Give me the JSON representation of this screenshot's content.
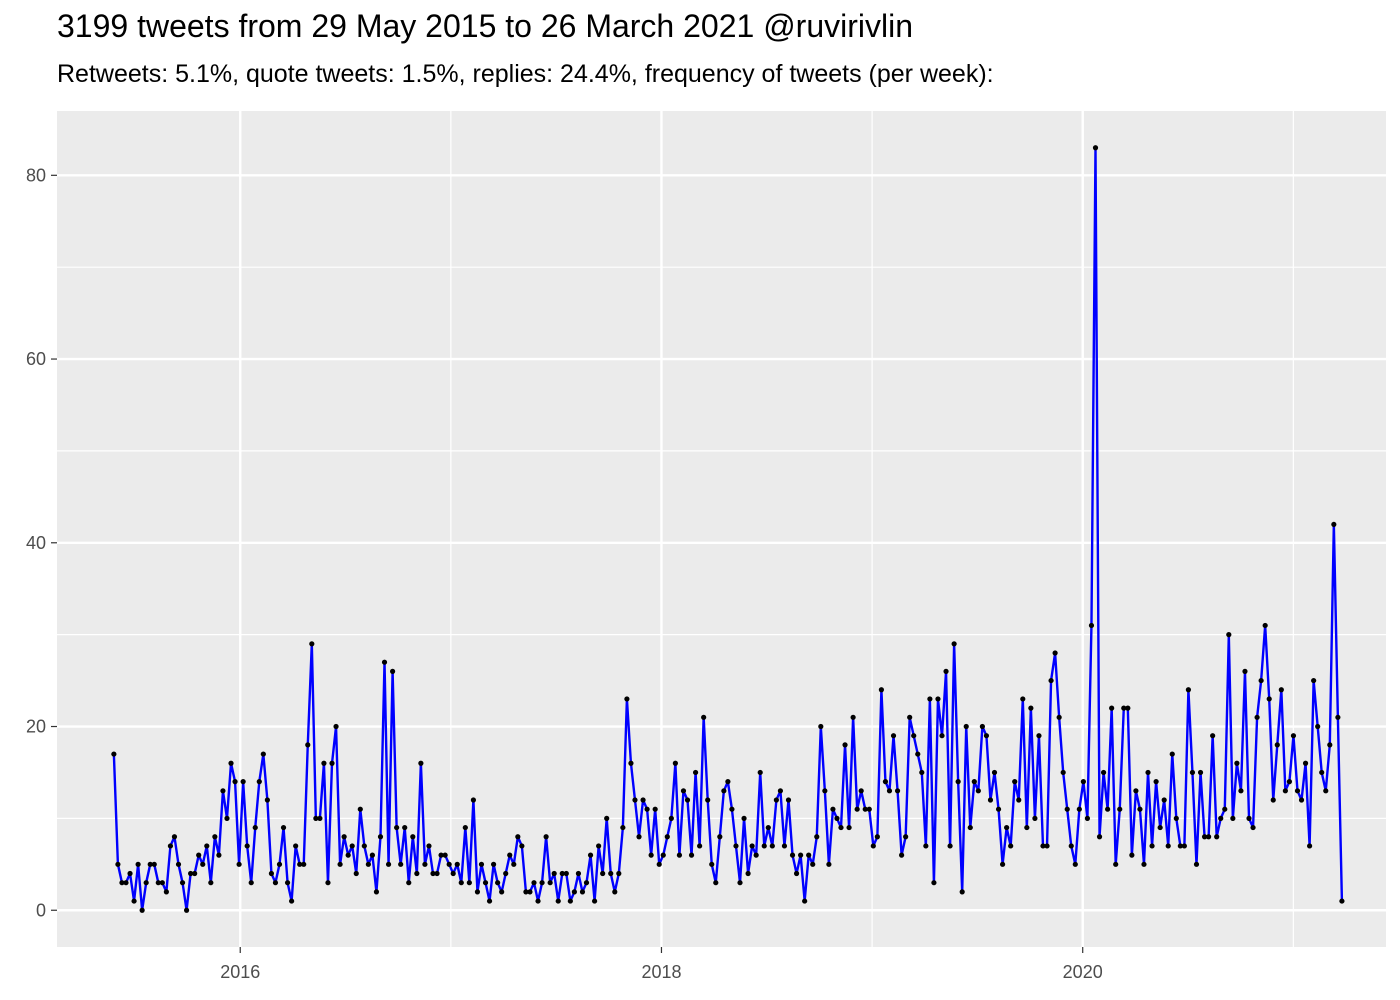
{
  "chart_data": {
    "type": "line",
    "title": "3199 tweets from 29 May 2015 to 26 March 2021 @ruvirivlin",
    "subtitle": "Retweets: 5.1%, quote tweets: 1.5%, replies: 24.4%, frequency of tweets (per week):",
    "xlabel": "",
    "ylabel": "",
    "x_range": [
      2015.13,
      2021.44
    ],
    "x_start": 2015.4,
    "x_step": 0.01918,
    "ylim": [
      -4,
      87
    ],
    "x_ticks": [
      {
        "value": 2016,
        "label": "2016"
      },
      {
        "value": 2018,
        "label": "2018"
      },
      {
        "value": 2020,
        "label": "2020"
      }
    ],
    "x_minor_ticks": [
      2017,
      2019,
      2021
    ],
    "y_ticks": [
      {
        "value": 0,
        "label": "0"
      },
      {
        "value": 20,
        "label": "20"
      },
      {
        "value": 40,
        "label": "40"
      },
      {
        "value": 60,
        "label": "60"
      },
      {
        "value": 80,
        "label": "80"
      }
    ],
    "y_minor_ticks": [
      10,
      30,
      50,
      70
    ],
    "grid": true,
    "line_color": "#0000ff",
    "point_color": "#000000",
    "panel_color": "#ebebeb",
    "grid_color": "#ffffff",
    "series": [
      {
        "values": [
          17,
          5,
          3,
          3,
          4,
          1,
          5,
          0,
          3,
          5,
          5,
          3,
          3,
          2,
          7,
          8,
          5,
          3,
          0,
          4,
          4,
          6,
          5,
          7,
          3,
          8,
          6,
          13,
          10,
          16,
          14,
          5,
          14,
          7,
          3,
          9,
          14,
          17,
          12,
          4,
          3,
          5,
          9,
          3,
          1,
          7,
          5,
          5,
          18,
          29,
          10,
          10,
          16,
          3,
          16,
          20,
          5,
          8,
          6,
          7,
          4,
          11,
          7,
          5,
          6,
          2,
          8,
          27,
          5,
          26,
          9,
          5,
          9,
          3,
          8,
          4,
          16,
          5,
          7,
          4,
          4,
          6,
          6,
          5,
          4,
          5,
          3,
          9,
          3,
          12,
          2,
          5,
          3,
          1,
          5,
          3,
          2,
          4,
          6,
          5,
          8,
          7,
          2,
          2,
          3,
          1,
          3,
          8,
          3,
          4,
          1,
          4,
          4,
          1,
          2,
          4,
          2,
          3,
          6,
          1,
          7,
          4,
          10,
          4,
          2,
          4,
          9,
          23,
          16,
          12,
          8,
          12,
          11,
          6,
          11,
          5,
          6,
          8,
          10,
          16,
          6,
          13,
          12,
          6,
          15,
          7,
          21,
          12,
          5,
          3,
          8,
          13,
          14,
          11,
          7,
          3,
          10,
          4,
          7,
          6,
          15,
          7,
          9,
          7,
          12,
          13,
          7,
          12,
          6,
          4,
          6,
          1,
          6,
          5,
          8,
          20,
          13,
          5,
          11,
          10,
          9,
          18,
          9,
          21,
          11,
          13,
          11,
          11,
          7,
          8,
          24,
          14,
          13,
          19,
          13,
          6,
          8,
          21,
          19,
          17,
          15,
          7,
          23,
          3,
          23,
          19,
          26,
          7,
          29,
          14,
          2,
          20,
          9,
          14,
          13,
          20,
          19,
          12,
          15,
          11,
          5,
          9,
          7,
          14,
          12,
          23,
          9,
          22,
          10,
          19,
          7,
          7,
          25,
          28,
          21,
          15,
          11,
          7,
          5,
          11,
          14,
          10,
          31,
          83,
          8,
          15,
          11,
          22,
          5,
          11,
          22,
          22,
          6,
          13,
          11,
          5,
          15,
          7,
          14,
          9,
          12,
          7,
          17,
          10,
          7,
          7,
          24,
          15,
          5,
          15,
          8,
          8,
          19,
          8,
          10,
          11,
          30,
          10,
          16,
          13,
          26,
          10,
          9,
          21,
          25,
          31,
          23,
          12,
          18,
          24,
          13,
          14,
          19,
          13,
          12,
          16,
          7,
          25,
          20,
          15,
          13,
          18,
          42,
          21,
          1
        ]
      }
    ]
  }
}
